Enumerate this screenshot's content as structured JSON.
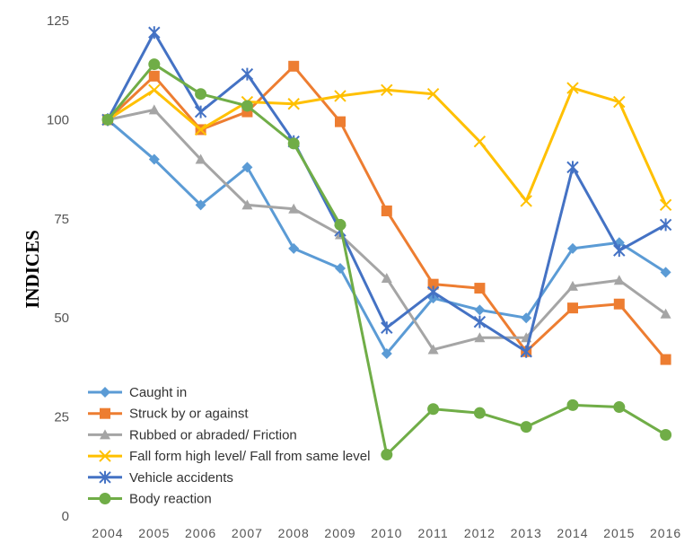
{
  "chart_data": {
    "type": "line",
    "title": "",
    "xlabel": "",
    "ylabel": "INDICES",
    "ylim": [
      0,
      125
    ],
    "yticks": [
      0,
      25,
      50,
      75,
      100,
      125
    ],
    "categories": [
      "2004",
      "2005",
      "2006",
      "2007",
      "2008",
      "2009",
      "2010",
      "2011",
      "2012",
      "2013",
      "2014",
      "2015",
      "2016"
    ],
    "grid": false,
    "legend_position": "bottom-left",
    "series": [
      {
        "name": "Caught in",
        "color": "#5B9BD5",
        "marker": "diamond",
        "values": [
          100,
          90,
          78.5,
          88,
          67.5,
          62.5,
          41,
          55,
          52,
          50,
          67.5,
          69,
          61.5
        ]
      },
      {
        "name": "Struck by or against",
        "color": "#ED7D31",
        "marker": "square",
        "values": [
          100,
          111,
          97.5,
          102,
          113.5,
          99.5,
          77,
          58.5,
          57.5,
          41.5,
          52.5,
          53.5,
          39.5
        ]
      },
      {
        "name": "Rubbed or abraded/ Friction",
        "color": "#A5A5A5",
        "marker": "triangle",
        "values": [
          100,
          102.5,
          90,
          78.5,
          77.5,
          71,
          60,
          42,
          45,
          45,
          58,
          59.5,
          51
        ]
      },
      {
        "name": "Fall form high level/ Fall from same level",
        "color": "#FFC000",
        "marker": "x",
        "values": [
          100,
          107.5,
          97.5,
          104.5,
          104,
          106,
          107.5,
          106.5,
          94.5,
          79.5,
          108,
          104.5,
          78.5
        ]
      },
      {
        "name": "Vehicle accidents",
        "color": "#4472C4",
        "marker": "star",
        "values": [
          100,
          122,
          102,
          111.5,
          94.5,
          72,
          47.5,
          56.5,
          49,
          41.5,
          88,
          67,
          73.5
        ]
      },
      {
        "name": "Body reaction",
        "color": "#70AD47",
        "marker": "circle",
        "values": [
          100,
          114,
          106.5,
          103.5,
          94,
          73.5,
          15.5,
          27,
          26,
          22.5,
          28,
          27.5,
          20.5
        ]
      }
    ]
  }
}
